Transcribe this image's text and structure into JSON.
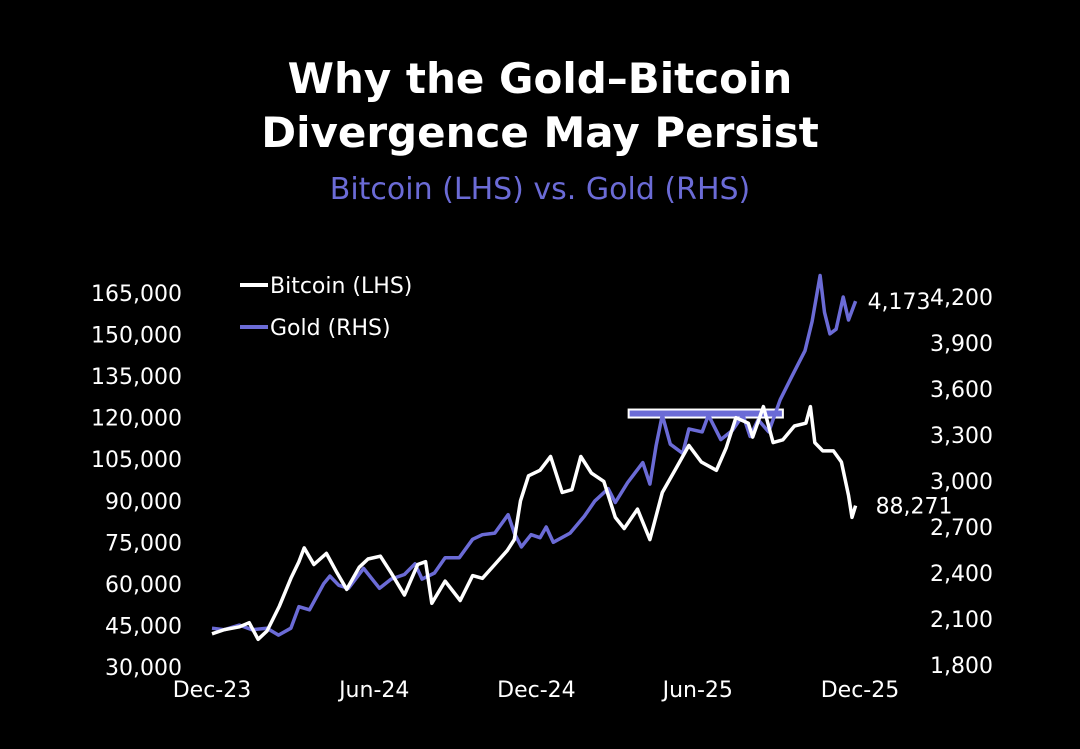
{
  "title_line1": "Why the Gold–Bitcoin",
  "title_line2": "Divergence May Persist",
  "subtitle": "Bitcoin (LHS) vs. Gold (RHS)",
  "chart_data": {
    "type": "line",
    "title": "Why the Gold–Bitcoin Divergence May Persist",
    "subtitle": "Bitcoin (LHS) vs. Gold (RHS)",
    "x_ticks": [
      "Dec-23",
      "Jun-24",
      "Dec-24",
      "Jun-25",
      "Dec-25"
    ],
    "x_tick_dates": [
      "2023-12-01",
      "2024-06-01",
      "2024-12-01",
      "2025-06-01",
      "2025-12-01"
    ],
    "xlim": [
      "2023-12-01",
      "2025-12-01"
    ],
    "y_left": {
      "ylim": [
        30000,
        165000
      ],
      "ticks": [
        "30,000",
        "45,000",
        "60,000",
        "75,000",
        "90,000",
        "105,000",
        "120,000",
        "135,000",
        "150,000",
        "165,000"
      ],
      "tick_values": [
        30000,
        45000,
        60000,
        75000,
        90000,
        105000,
        120000,
        135000,
        150000,
        165000
      ]
    },
    "y_right": {
      "ylim": [
        1800,
        4200
      ],
      "ticks": [
        "1,800",
        "2,100",
        "2,400",
        "2,700",
        "3,000",
        "3,300",
        "3,600",
        "3,900",
        "4,200"
      ],
      "tick_values": [
        1800,
        2100,
        2400,
        2700,
        3000,
        3300,
        3600,
        3900,
        4200
      ]
    },
    "grid": false,
    "legend_position": "top-left",
    "series": [
      {
        "name": "Bitcoin (LHS)",
        "axis": "left",
        "color": "#ffffff",
        "end_label": "88,271",
        "points": [
          [
            "2023-12-01",
            42000
          ],
          [
            "2023-12-15",
            43500
          ],
          [
            "2024-01-01",
            44500
          ],
          [
            "2024-01-12",
            46000
          ],
          [
            "2024-01-22",
            40000
          ],
          [
            "2024-02-01",
            43000
          ],
          [
            "2024-02-15",
            52000
          ],
          [
            "2024-02-28",
            62000
          ],
          [
            "2024-03-08",
            68000
          ],
          [
            "2024-03-14",
            73000
          ],
          [
            "2024-03-25",
            67000
          ],
          [
            "2024-04-08",
            71000
          ],
          [
            "2024-04-20",
            64000
          ],
          [
            "2024-05-01",
            58000
          ],
          [
            "2024-05-15",
            66000
          ],
          [
            "2024-05-25",
            69000
          ],
          [
            "2024-06-08",
            70000
          ],
          [
            "2024-06-20",
            64000
          ],
          [
            "2024-07-05",
            56000
          ],
          [
            "2024-07-20",
            67000
          ],
          [
            "2024-07-29",
            68000
          ],
          [
            "2024-08-05",
            53000
          ],
          [
            "2024-08-20",
            61000
          ],
          [
            "2024-09-06",
            54000
          ],
          [
            "2024-09-20",
            63000
          ],
          [
            "2024-10-01",
            62000
          ],
          [
            "2024-10-15",
            67000
          ],
          [
            "2024-10-29",
            72000
          ],
          [
            "2024-11-06",
            76000
          ],
          [
            "2024-11-13",
            90000
          ],
          [
            "2024-11-22",
            99000
          ],
          [
            "2024-12-05",
            101000
          ],
          [
            "2024-12-17",
            106000
          ],
          [
            "2024-12-30",
            93000
          ],
          [
            "2025-01-10",
            94000
          ],
          [
            "2025-01-20",
            106000
          ],
          [
            "2025-02-01",
            100000
          ],
          [
            "2025-02-15",
            97000
          ],
          [
            "2025-02-28",
            84000
          ],
          [
            "2025-03-10",
            80000
          ],
          [
            "2025-03-25",
            87000
          ],
          [
            "2025-04-08",
            76000
          ],
          [
            "2025-04-22",
            93000
          ],
          [
            "2025-05-08",
            102000
          ],
          [
            "2025-05-22",
            110000
          ],
          [
            "2025-06-05",
            104000
          ],
          [
            "2025-06-22",
            101000
          ],
          [
            "2025-07-03",
            109000
          ],
          [
            "2025-07-14",
            120000
          ],
          [
            "2025-07-28",
            118000
          ],
          [
            "2025-08-02",
            113000
          ],
          [
            "2025-08-14",
            124000
          ],
          [
            "2025-08-25",
            111000
          ],
          [
            "2025-09-05",
            112000
          ],
          [
            "2025-09-18",
            117000
          ],
          [
            "2025-10-01",
            118000
          ],
          [
            "2025-10-06",
            124000
          ],
          [
            "2025-10-11",
            111000
          ],
          [
            "2025-10-20",
            108000
          ],
          [
            "2025-11-01",
            108000
          ],
          [
            "2025-11-10",
            104000
          ],
          [
            "2025-11-18",
            92000
          ],
          [
            "2025-11-22",
            84000
          ],
          [
            "2025-11-26",
            88271
          ]
        ]
      },
      {
        "name": "Gold (RHS)",
        "axis": "right",
        "color": "#6b6bd6",
        "end_label": "4,173",
        "points": [
          [
            "2023-12-01",
            2040
          ],
          [
            "2023-12-15",
            2030
          ],
          [
            "2024-01-01",
            2060
          ],
          [
            "2024-01-15",
            2030
          ],
          [
            "2024-02-01",
            2040
          ],
          [
            "2024-02-14",
            1995
          ],
          [
            "2024-02-28",
            2040
          ],
          [
            "2024-03-08",
            2180
          ],
          [
            "2024-03-20",
            2160
          ],
          [
            "2024-04-05",
            2330
          ],
          [
            "2024-04-12",
            2380
          ],
          [
            "2024-04-22",
            2320
          ],
          [
            "2024-05-03",
            2300
          ],
          [
            "2024-05-20",
            2430
          ],
          [
            "2024-06-07",
            2300
          ],
          [
            "2024-06-20",
            2360
          ],
          [
            "2024-07-05",
            2390
          ],
          [
            "2024-07-17",
            2460
          ],
          [
            "2024-07-25",
            2360
          ],
          [
            "2024-08-08",
            2400
          ],
          [
            "2024-08-20",
            2500
          ],
          [
            "2024-09-05",
            2500
          ],
          [
            "2024-09-20",
            2620
          ],
          [
            "2024-10-01",
            2650
          ],
          [
            "2024-10-15",
            2660
          ],
          [
            "2024-10-30",
            2780
          ],
          [
            "2024-11-06",
            2660
          ],
          [
            "2024-11-14",
            2570
          ],
          [
            "2024-11-25",
            2650
          ],
          [
            "2024-12-05",
            2630
          ],
          [
            "2024-12-12",
            2700
          ],
          [
            "2024-12-20",
            2600
          ],
          [
            "2025-01-08",
            2660
          ],
          [
            "2025-01-24",
            2770
          ],
          [
            "2025-02-05",
            2870
          ],
          [
            "2025-02-20",
            2950
          ],
          [
            "2025-02-28",
            2860
          ],
          [
            "2025-03-14",
            2990
          ],
          [
            "2025-03-31",
            3120
          ],
          [
            "2025-04-08",
            2980
          ],
          [
            "2025-04-15",
            3230
          ],
          [
            "2025-04-22",
            3430
          ],
          [
            "2025-05-01",
            3240
          ],
          [
            "2025-05-15",
            3180
          ],
          [
            "2025-05-22",
            3340
          ],
          [
            "2025-06-06",
            3320
          ],
          [
            "2025-06-13",
            3430
          ],
          [
            "2025-06-27",
            3270
          ],
          [
            "2025-07-10",
            3330
          ],
          [
            "2025-07-22",
            3430
          ],
          [
            "2025-07-30",
            3290
          ],
          [
            "2025-08-08",
            3400
          ],
          [
            "2025-08-20",
            3320
          ],
          [
            "2025-09-02",
            3530
          ],
          [
            "2025-09-15",
            3680
          ],
          [
            "2025-09-30",
            3850
          ],
          [
            "2025-10-08",
            4040
          ],
          [
            "2025-10-17",
            4340
          ],
          [
            "2025-10-22",
            4100
          ],
          [
            "2025-10-28",
            3960
          ],
          [
            "2025-11-04",
            3990
          ],
          [
            "2025-11-12",
            4200
          ],
          [
            "2025-11-18",
            4050
          ],
          [
            "2025-11-26",
            4173
          ]
        ]
      }
    ],
    "annotations": [
      {
        "type": "horizontal-bar",
        "axis": "right",
        "value": 3440,
        "from": "2025-03-15",
        "to": "2025-09-05",
        "fill": "#6b6bd6",
        "outline": "#ffffff"
      }
    ]
  }
}
